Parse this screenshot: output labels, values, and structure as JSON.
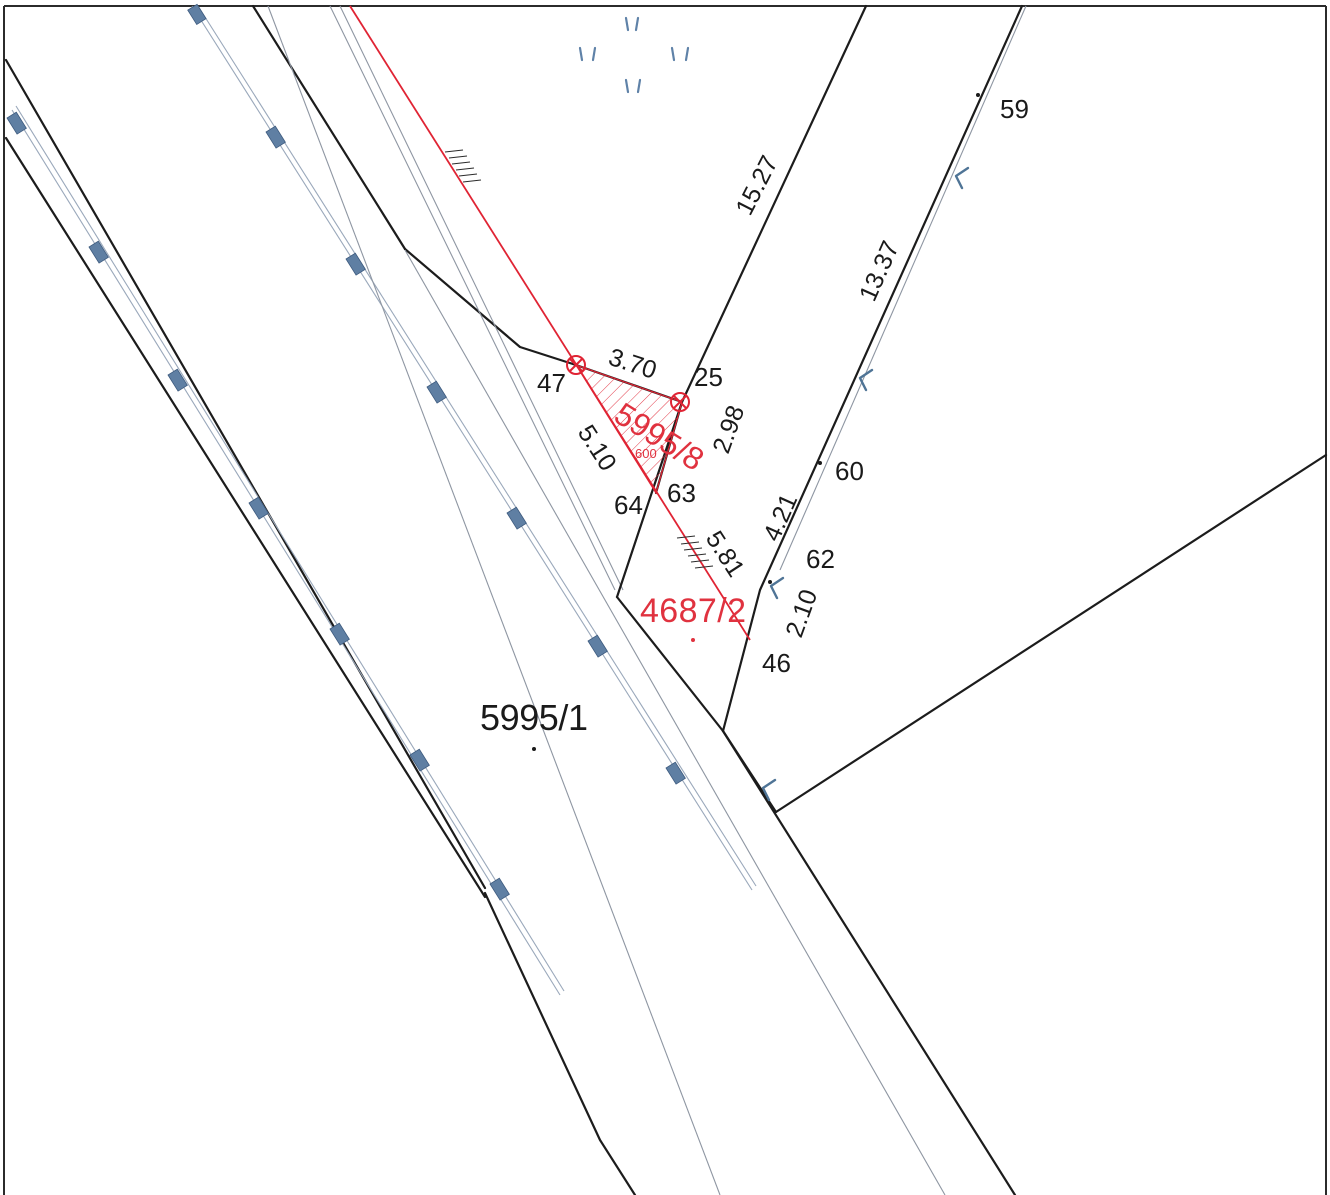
{
  "parcels": {
    "main_parcel": "5995/1",
    "red_parcel_large": "4687/2",
    "red_parcel_small": "5995/8",
    "red_small_code": "600"
  },
  "point_numbers": {
    "p59": "59",
    "p60": "60",
    "p62": "62",
    "p46": "46",
    "p47": "47",
    "p25": "25",
    "p63": "63",
    "p64": "64"
  },
  "distances": {
    "d1527": "15.27",
    "d1337": "13.37",
    "d370": "3.70",
    "d298": "2.98",
    "d510": "5.10",
    "d581": "5.81",
    "d421": "4.21",
    "d210": "2.10"
  },
  "colors": {
    "boundary": "#1c1c1c",
    "new_boundary": "#e02434",
    "markers": "#5f7fa3",
    "background": "#ffffff"
  }
}
